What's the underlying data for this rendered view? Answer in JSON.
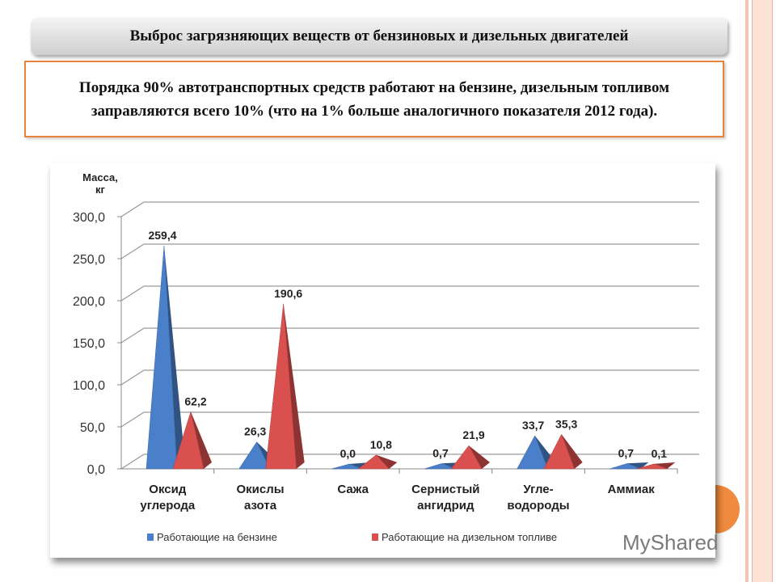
{
  "slide": {
    "title": "Выброс загрязняющих веществ от бензиновых и дизельных двигателей",
    "text": "Порядка 90% автотранспортных средств работают на бензине, дизельным топливом заправляются всего 10% (что на 1% больше аналогичного показателя 2012 года).",
    "accent_color": "#e8833a",
    "watermark": "MyShared"
  },
  "chart_data": {
    "type": "bar",
    "style": "3d-pyramid",
    "ylabel": "Масса, кг",
    "ylim": [
      0,
      300
    ],
    "yticks": [
      "0,0",
      "50,0",
      "100,0",
      "150,0",
      "200,0",
      "250,0",
      "300,0"
    ],
    "grid": true,
    "legend_position": "bottom",
    "categories": [
      [
        "Оксид",
        "углерода"
      ],
      [
        "Окислы",
        "азота"
      ],
      [
        "Сажа"
      ],
      [
        "Сернистый",
        "ангидрид"
      ],
      [
        "Угле-",
        "водороды"
      ],
      [
        "Аммиак"
      ]
    ],
    "series": [
      {
        "name": "Работающие на бензине",
        "color": "#4a7fc9",
        "values": [
          259.4,
          26.3,
          0.0,
          0.7,
          33.7,
          0.7
        ],
        "labels": [
          "259,4",
          "26,3",
          "0,0",
          "0,7",
          "33,7",
          "0,7"
        ]
      },
      {
        "name": "Работающие на дизельном топливе",
        "color": "#d9504f",
        "values": [
          62.2,
          190.6,
          10.8,
          21.9,
          35.3,
          0.1
        ],
        "labels": [
          "62,2",
          "190,6",
          "10,8",
          "21,9",
          "35,3",
          "0,1"
        ]
      }
    ]
  }
}
